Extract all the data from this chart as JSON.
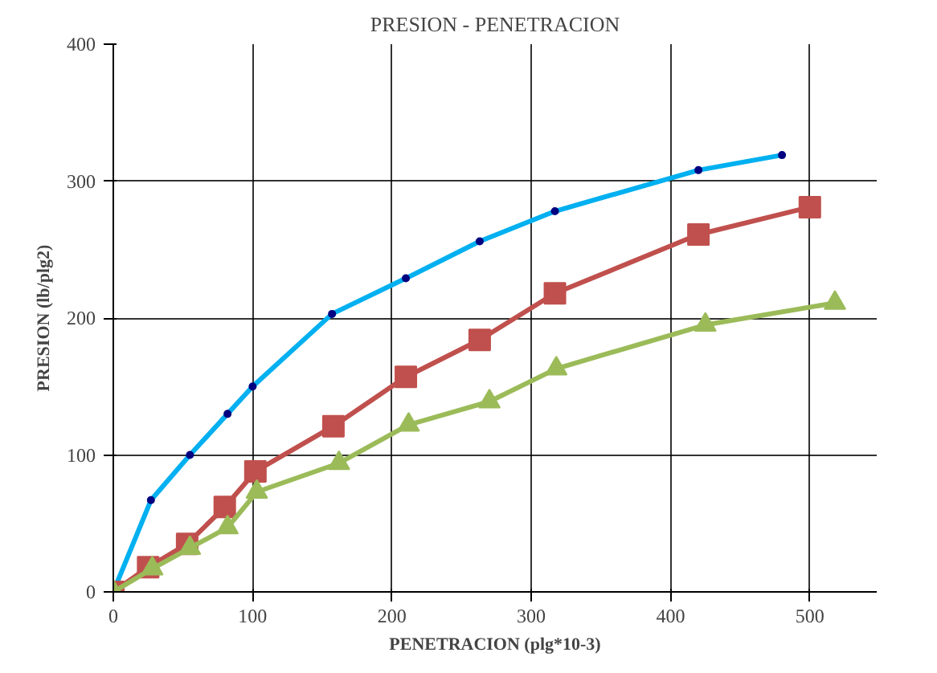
{
  "chart_data": {
    "type": "line",
    "title": "PRESION - PENETRACION",
    "xlabel": "PENETRACION (plg*10-3)",
    "ylabel": "PRESION (lb/plg2)",
    "xlim": [
      0,
      548
    ],
    "ylim": [
      0,
      400
    ],
    "xticks": [
      0,
      100,
      200,
      300,
      400,
      500
    ],
    "yticks": [
      0,
      100,
      200,
      300,
      400
    ],
    "grid": true,
    "series": [
      {
        "color": "#00b0f0",
        "marker": "circle",
        "x": [
          0,
          27,
          55,
          82,
          100,
          157,
          210,
          263,
          317,
          420,
          480
        ],
        "values": [
          0,
          67,
          100,
          130,
          150,
          203,
          229,
          256,
          278,
          308,
          319
        ]
      },
      {
        "color": "#c0504d",
        "marker": "square",
        "x": [
          0,
          25,
          53,
          80,
          102,
          158,
          210,
          263,
          317,
          420,
          500
        ],
        "values": [
          0,
          18,
          35,
          62,
          88,
          121,
          157,
          184,
          218,
          261,
          281
        ]
      },
      {
        "color": "#9bbb59",
        "marker": "triangle",
        "x": [
          0,
          28,
          55,
          82,
          103,
          162,
          212,
          270,
          318,
          425,
          518
        ],
        "values": [
          0,
          17,
          32,
          47,
          73,
          94,
          122,
          139,
          163,
          195,
          211
        ]
      }
    ]
  }
}
